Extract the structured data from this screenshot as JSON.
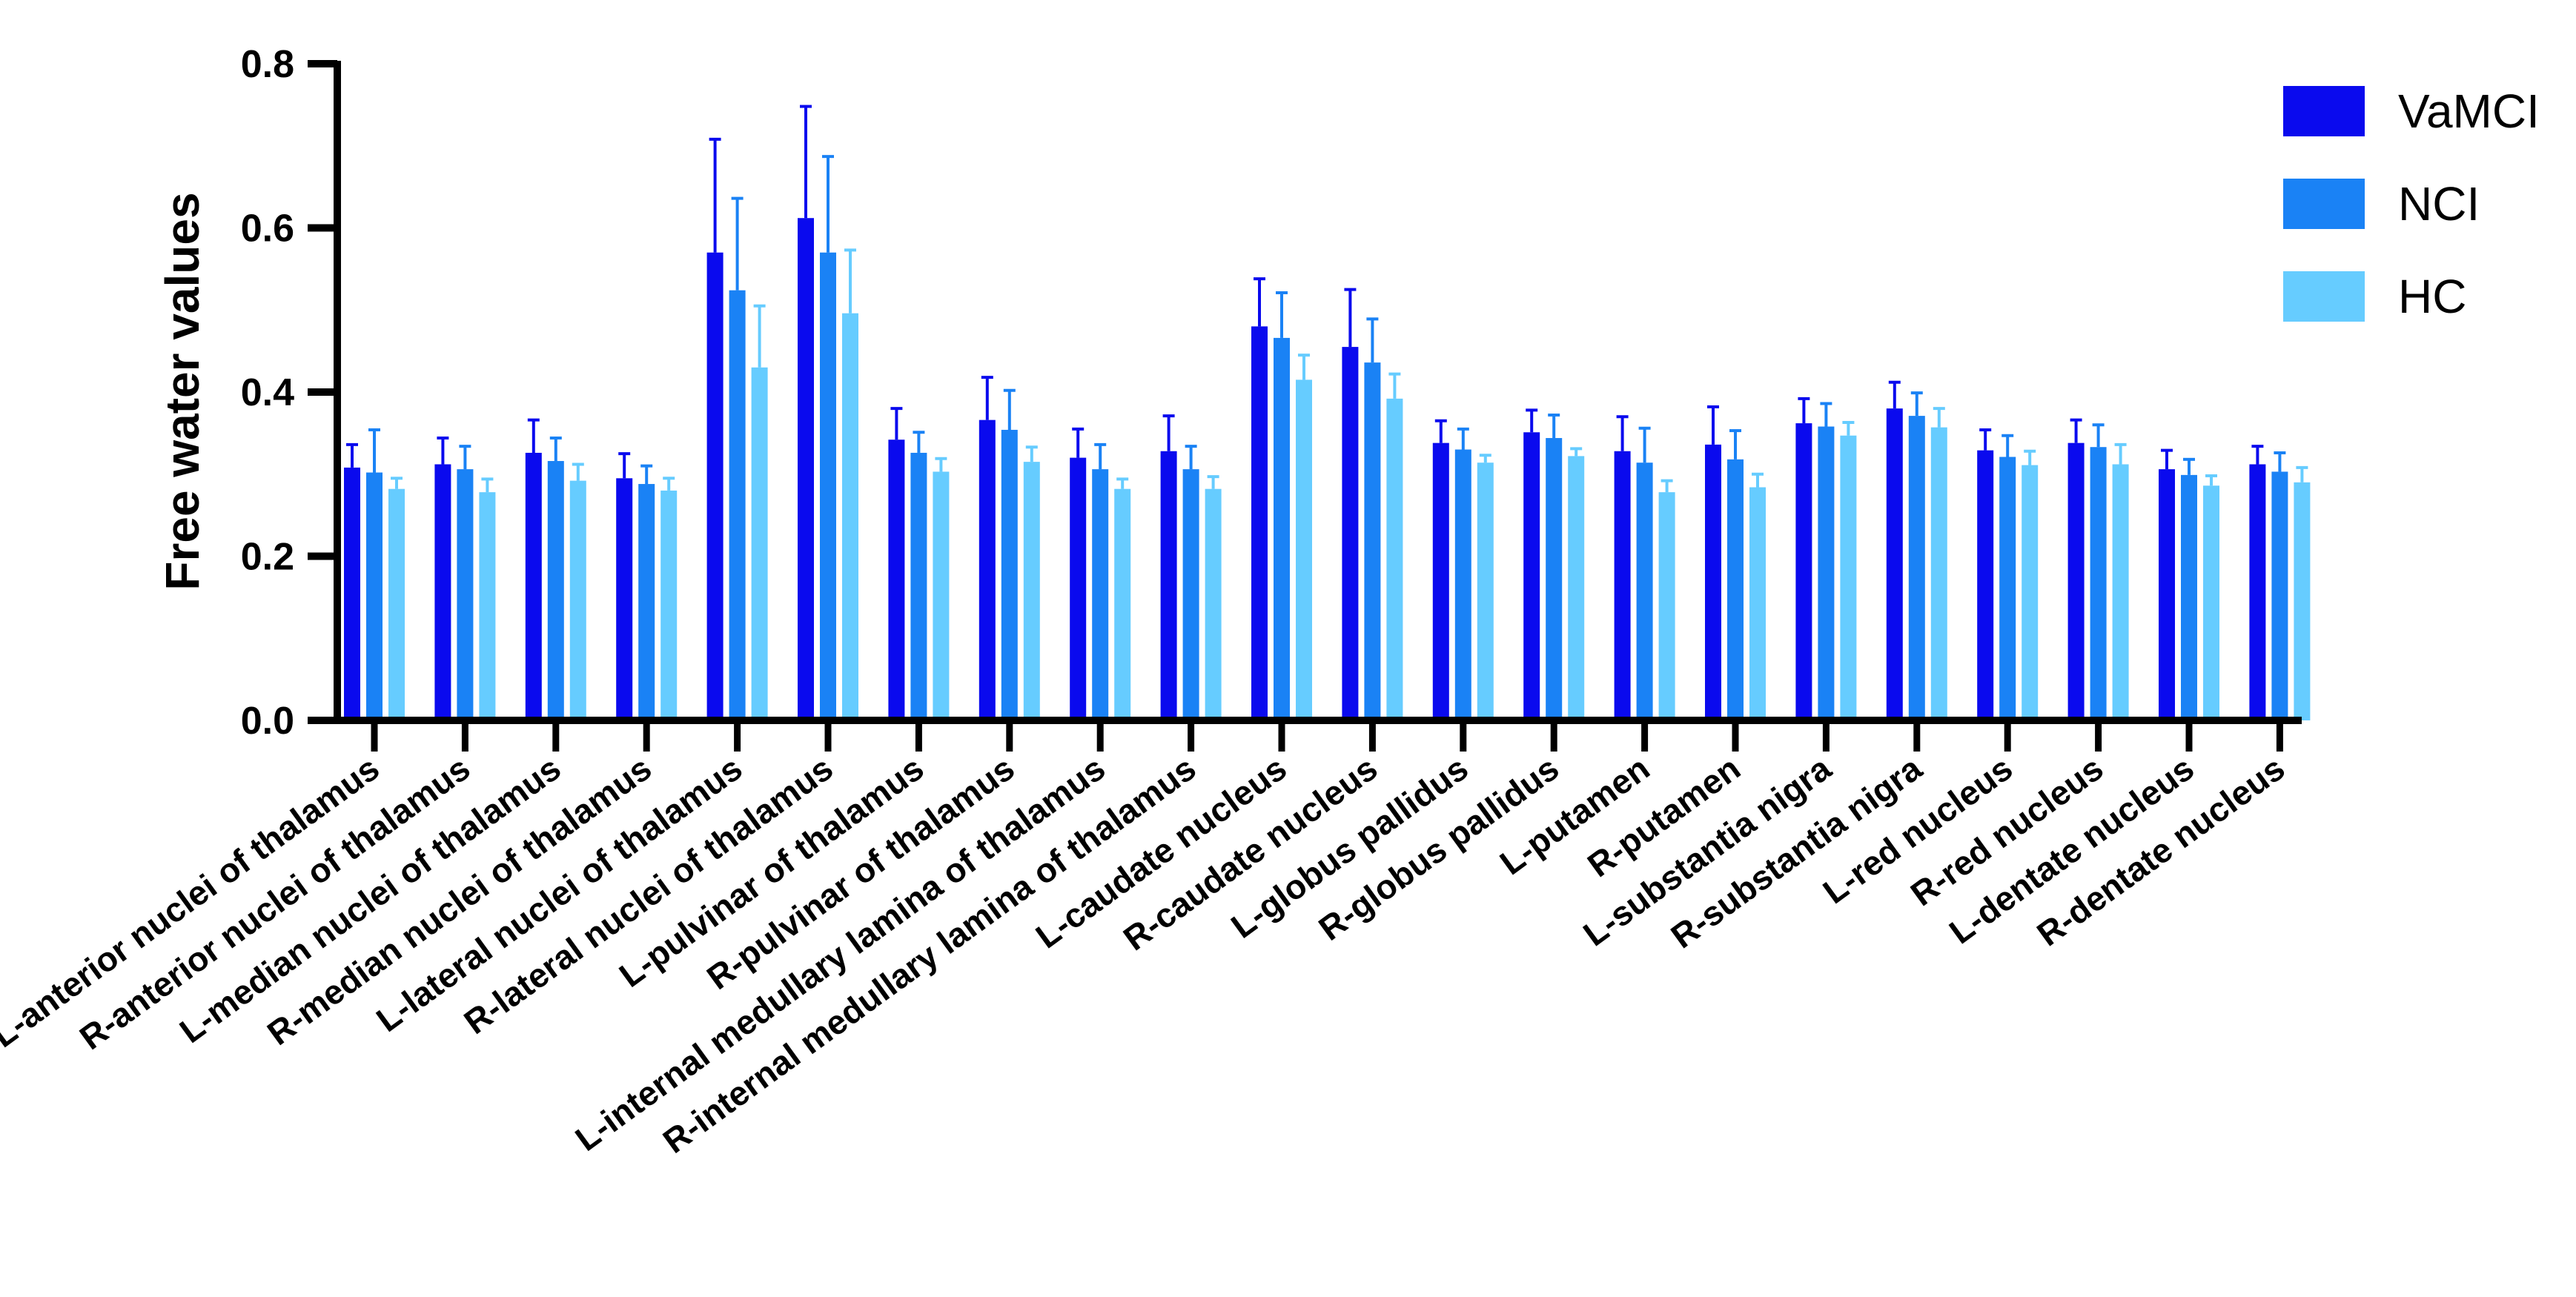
{
  "chart_data": {
    "type": "bar",
    "title": "",
    "xlabel": "",
    "ylabel": "Free water values",
    "ylim": [
      0,
      0.8
    ],
    "yticks": [
      "0.0",
      "0.2",
      "0.4",
      "0.6",
      "0.8"
    ],
    "categories": [
      "L-anterior nuclei of thalamus",
      "R-anterior nuclei of thalamus",
      "L-median nuclei of thalamus",
      "R-median nuclei of thalamus",
      "L-lateral nuclei of thalamus",
      "R-lateral nuclei of thalamus",
      "L-pulvinar of thalamus",
      "R-pulvinar of thalamus",
      "L-internal medullary lamina of thalamus",
      "R-internal medullary lamina of thalamus",
      "L-caudate nucleus",
      "R-caudate nucleus",
      "L-globus pallidus",
      "R-globus pallidus",
      "L-putamen",
      "R-putamen",
      "L-substantia nigra",
      "R-substantia nigra",
      "L-red nucleus",
      "R-red nucleus",
      "L-dentate nucleus",
      "R-dentate nucleus"
    ],
    "series": [
      {
        "name": "VaMCI",
        "color": "#0a0aee",
        "values": [
          0.308,
          0.312,
          0.326,
          0.295,
          0.57,
          0.612,
          0.342,
          0.366,
          0.32,
          0.328,
          0.48,
          0.455,
          0.338,
          0.351,
          0.328,
          0.336,
          0.362,
          0.38,
          0.329,
          0.338,
          0.306,
          0.312
        ],
        "errors": [
          0.028,
          0.032,
          0.04,
          0.03,
          0.138,
          0.136,
          0.038,
          0.052,
          0.035,
          0.043,
          0.058,
          0.07,
          0.027,
          0.027,
          0.042,
          0.046,
          0.03,
          0.032,
          0.025,
          0.028,
          0.023,
          0.022
        ]
      },
      {
        "name": "NCI",
        "color": "#1a82f5",
        "values": [
          0.302,
          0.306,
          0.316,
          0.288,
          0.524,
          0.57,
          0.326,
          0.354,
          0.306,
          0.306,
          0.466,
          0.436,
          0.33,
          0.344,
          0.314,
          0.318,
          0.358,
          0.371,
          0.321,
          0.333,
          0.299,
          0.303
        ],
        "errors": [
          0.052,
          0.028,
          0.028,
          0.022,
          0.112,
          0.117,
          0.025,
          0.048,
          0.03,
          0.028,
          0.055,
          0.053,
          0.025,
          0.028,
          0.042,
          0.035,
          0.028,
          0.028,
          0.026,
          0.027,
          0.019,
          0.023
        ]
      },
      {
        "name": "HC",
        "color": "#66ccff",
        "values": [
          0.282,
          0.278,
          0.292,
          0.28,
          0.43,
          0.496,
          0.303,
          0.315,
          0.282,
          0.282,
          0.415,
          0.392,
          0.314,
          0.322,
          0.278,
          0.284,
          0.347,
          0.357,
          0.311,
          0.312,
          0.286,
          0.29
        ],
        "errors": [
          0.013,
          0.016,
          0.02,
          0.015,
          0.075,
          0.077,
          0.016,
          0.018,
          0.012,
          0.015,
          0.03,
          0.03,
          0.009,
          0.009,
          0.014,
          0.016,
          0.016,
          0.023,
          0.017,
          0.024,
          0.012,
          0.018
        ]
      }
    ],
    "legend": {
      "position": "top-right",
      "entries": [
        "VaMCI",
        "NCI",
        "HC"
      ]
    }
  }
}
